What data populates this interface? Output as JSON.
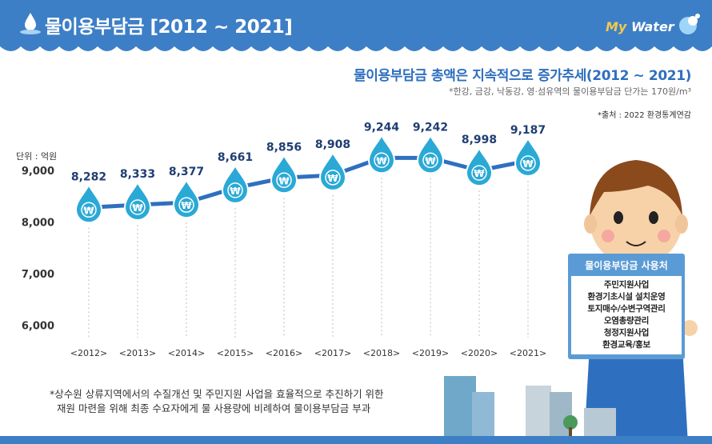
{
  "header": {
    "title": "물이용부담금 [2012 ~ 2021]",
    "brand_my": "My",
    "brand_water": "Water"
  },
  "subtitle": "물이용부담금 총액은 지속적으로 증가추세(2012 ~ 2021)",
  "note": "*한강, 금강, 낙동강, 영·섬유역의 물이용부담금 단가는 170원/m³",
  "source": "*출처 : 2022 환경통계연감",
  "unit_label": "단위 : 억원",
  "chart_data": {
    "type": "line",
    "categories": [
      "<2012>",
      "<2013>",
      "<2014>",
      "<2015>",
      "<2016>",
      "<2017>",
      "<2018>",
      "<2019>",
      "<2020>",
      "<2021>"
    ],
    "values": [
      8282,
      8333,
      8377,
      8661,
      8856,
      8908,
      9244,
      9242,
      8998,
      9187
    ],
    "value_labels": [
      "8,282",
      "8,333",
      "8,377",
      "8,661",
      "8,856",
      "8,908",
      "9,244",
      "9,242",
      "8,998",
      "9,187"
    ],
    "y_ticks": [
      "9,000",
      "8,000",
      "7,000",
      "6,000"
    ],
    "y_tick_values": [
      9000,
      8000,
      7000,
      6000
    ],
    "ylim": [
      5500,
      9500
    ],
    "marker_symbol": "₩",
    "colors": {
      "line": "#2f6fbf",
      "drop": "#2aa9d6",
      "label": "#1f3e73",
      "axis": "#333333",
      "grid": "#bbbbbb"
    }
  },
  "usage_box": {
    "title": "물이용부담금 사용처",
    "items": [
      "주민지원사업",
      "환경기초시설 설치운영",
      "토지매수/수변구역관리",
      "오염총량관리",
      "청정지원사업",
      "환경교육/홍보"
    ]
  },
  "footnote": {
    "line1": "*상수원 상류지역에서의 수질개선 및 주민지원 사업을 효율적으로 추진하기 위한",
    "line2": "재원 마련을 위해 최종 수요자에게 물 사용량에 비례하여 물이용부담금 부과"
  },
  "theme": {
    "header_bg": "#3d7fc6",
    "accent": "#2f6fbf"
  }
}
